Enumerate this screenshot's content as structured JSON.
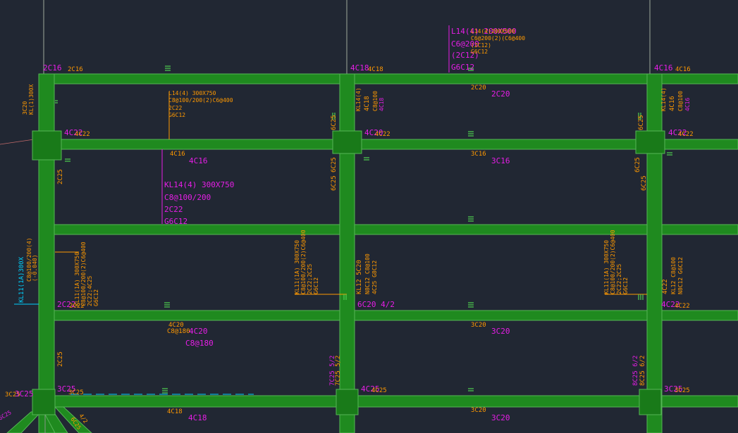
{
  "colors": {
    "background": "#212733",
    "beam_fill": "#1f8a1f",
    "beam_edge": "#56b556",
    "column_fill": "#197a19",
    "magenta": "#e61ee6",
    "orange": "#ff9900",
    "cyan": "#00d2ff",
    "white": "#cfd6cf",
    "green_tick": "#4fd14f"
  },
  "beam_labels": {
    "kl14_a": {
      "name": "KL14(4) 300X750",
      "stirrup": "C8@100/200",
      "top": "2C22",
      "side": "G6C12"
    },
    "l14_top": {
      "name": "L14(4) 200X500",
      "stirrup": "C6@200",
      "top": "(2C12)",
      "side": "G6C12"
    },
    "l14_top_overlap": {
      "line1": "L14(4)200X500",
      "line2": "C6@200(2)(C6@400",
      "line3": "(2C12)",
      "line4": "G6C12"
    },
    "kl14_b_overlap": {
      "line1": "L14(4) 300X750",
      "line2": "C8@100/200(2)C6@400",
      "line3": "2C22",
      "line4": "G6C12"
    },
    "kl11": {
      "name": "KL11(1A)300X",
      "cyan_line": "KL11(1A)300X",
      "stack1": "C8@100/200(4)",
      "stack2": "2C22;4C25",
      "stack3": "G6C12",
      "stack4": "(-0.040)"
    },
    "mid_rotated_left": {
      "a": "KL11(1A) 300X750",
      "b": "C8@100/200(2)C6@400",
      "c": "2C22;2C25",
      "d": "G6C12"
    },
    "mid_rotated_center": {
      "a": "KL12 5C20",
      "b": "N8C12 C8@100",
      "c": "4C25 G8C12"
    },
    "mid_rotated_right": {
      "a": "KL11(1A) 300X750",
      "b": "C8@100/200(2)C6@400",
      "c": "2C22;2C25",
      "d": "G6C12"
    },
    "mid_rotated_right2": {
      "a": "4C22",
      "b": "KL12 C8@100",
      "c": "N8C12 G6C12"
    },
    "top_left_vertical": {
      "a": "3C20",
      "b": "KL(1)300X"
    },
    "top_mid_vertical": {
      "a": "KL14(4)",
      "b": "4C18",
      "c": "C8@100"
    },
    "top_right_vertical": {
      "a": "KL14(4)",
      "b": "4C16",
      "c": "C8@100"
    },
    "left_bottom_vertical": {
      "a": "6C25",
      "b": "4/2"
    }
  },
  "rebar_labels": {
    "r_2c16_tl": "2C16",
    "r_2c16_tl2": "2C16",
    "r_4c18_t": "4C18",
    "r_4c18_t2": "4C18",
    "r_4c16_tr": "4C16",
    "r_4c16_tr2": "4C16",
    "r_2c20_a": "2C20",
    "r_2c20_b": "2C20",
    "r_4c22_l": "4C22",
    "r_4c22_l2": "4C22",
    "r_4c20_m": "4C20",
    "r_4c22_m2": "4C22",
    "r_4c22_r": "4C22",
    "r_4c22_r2": "4C22",
    "r_4c16_a": "4C16",
    "r_4c16_b": "4C16",
    "r_3c16_a": "3C16",
    "r_3c16_b": "3C16",
    "r_2c25_v1": "2C25",
    "r_6c25_v1": "6C25",
    "r_6c25_v2": "6C25",
    "r_6c25_v3": "6C25",
    "r_6c25_v4": "6C25",
    "r_2c22_l": "2C22",
    "r_2c22_l2": "2C22",
    "r_6c20_m": "6C20 4/2",
    "r_4c22_r3": "4C22",
    "r_4c22_r4": "4C22",
    "r_4c20_low": "4C20",
    "r_4c20_low2": "4C20",
    "r_c8_180": "C8@180",
    "r_3c20_a": "3C20",
    "r_3c20_b": "3C20",
    "r_2c25_v2": "2C25",
    "r_7c25_v": "7C25 5/2",
    "r_8c25_v": "8C25 6/2",
    "r_3c25_l": "3C25",
    "r_3c25_l2": "3C25",
    "r_3c25_bl": "3C25",
    "r_3c25_bl2": "3C25",
    "r_4c25_m": "4C25",
    "r_4c25_m2": "4C25",
    "r_3c25_r": "3C25",
    "r_3c25_r2": "3C25",
    "r_4c18_b": "4C18",
    "r_4c18_b2": "4C18",
    "r_3c20_c": "3C20",
    "r_3c20_d": "3C20",
    "r_6c25_diag": "6C25",
    "r_4c25_mid": "4C25"
  }
}
